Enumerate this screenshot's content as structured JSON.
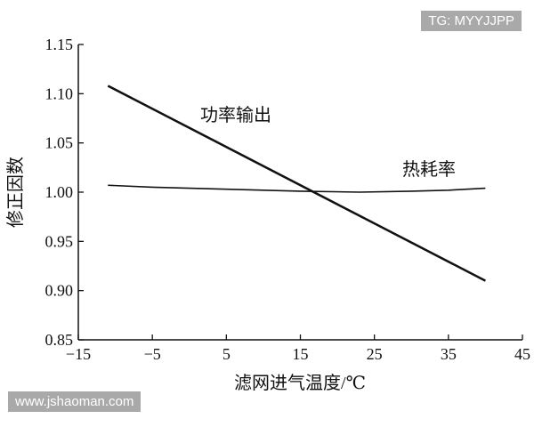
{
  "chart_data": {
    "type": "line",
    "xlabel": "滤网进气温度/℃",
    "ylabel": "修正因数",
    "xlim": [
      -15,
      45
    ],
    "ylim": [
      0.85,
      1.15
    ],
    "xticks": [
      "−15",
      "−5",
      "5",
      "15",
      "25",
      "35",
      "45"
    ],
    "yticks": [
      "0.85",
      "0.90",
      "0.95",
      "1.00",
      "1.05",
      "1.10",
      "1.15"
    ],
    "grid": false,
    "series": [
      {
        "name": "功率输出",
        "x": [
          -11,
          40
        ],
        "y": [
          1.108,
          0.91
        ],
        "stroke_width": 2.5
      },
      {
        "name": "热耗率",
        "x": [
          -11,
          -5,
          5,
          15,
          23,
          30,
          35,
          40
        ],
        "y": [
          1.007,
          1.005,
          1.003,
          1.001,
          1.0,
          1.001,
          1.002,
          1.004
        ],
        "stroke_width": 1.6
      }
    ]
  },
  "watermarks": {
    "top": "TG: MYYJJPP",
    "bottom": "www.jshaoman.com"
  }
}
